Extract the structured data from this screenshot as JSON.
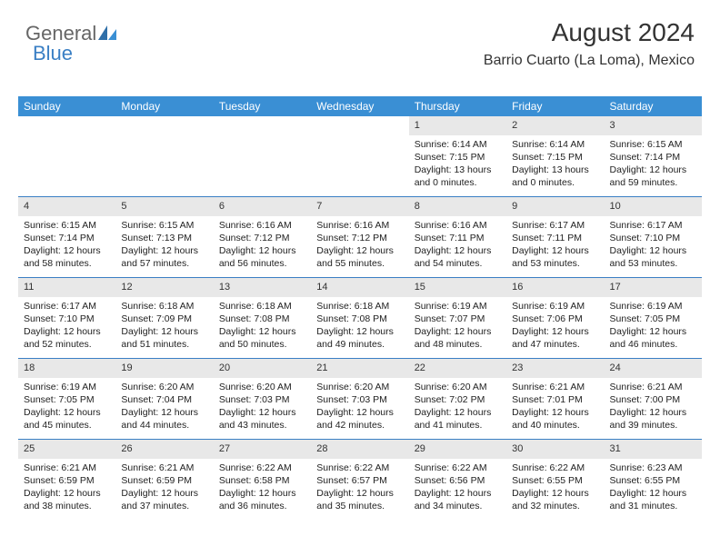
{
  "logo": {
    "text_general": "General",
    "text_blue": "Blue"
  },
  "header": {
    "month_title": "August 2024",
    "location": "Barrio Cuarto (La Loma), Mexico"
  },
  "colors": {
    "header_bg": "#3a8fd4",
    "header_text": "#ffffff",
    "daynum_bg": "#e8e8e8",
    "week_border": "#3a7fc4",
    "logo_blue": "#3a7fc4",
    "body_text": "#222222"
  },
  "day_labels": [
    "Sunday",
    "Monday",
    "Tuesday",
    "Wednesday",
    "Thursday",
    "Friday",
    "Saturday"
  ],
  "weeks": [
    [
      {
        "empty": true
      },
      {
        "empty": true
      },
      {
        "empty": true
      },
      {
        "empty": true
      },
      {
        "num": "1",
        "sunrise": "Sunrise: 6:14 AM",
        "sunset": "Sunset: 7:15 PM",
        "daylight": "Daylight: 13 hours and 0 minutes."
      },
      {
        "num": "2",
        "sunrise": "Sunrise: 6:14 AM",
        "sunset": "Sunset: 7:15 PM",
        "daylight": "Daylight: 13 hours and 0 minutes."
      },
      {
        "num": "3",
        "sunrise": "Sunrise: 6:15 AM",
        "sunset": "Sunset: 7:14 PM",
        "daylight": "Daylight: 12 hours and 59 minutes."
      }
    ],
    [
      {
        "num": "4",
        "sunrise": "Sunrise: 6:15 AM",
        "sunset": "Sunset: 7:14 PM",
        "daylight": "Daylight: 12 hours and 58 minutes."
      },
      {
        "num": "5",
        "sunrise": "Sunrise: 6:15 AM",
        "sunset": "Sunset: 7:13 PM",
        "daylight": "Daylight: 12 hours and 57 minutes."
      },
      {
        "num": "6",
        "sunrise": "Sunrise: 6:16 AM",
        "sunset": "Sunset: 7:12 PM",
        "daylight": "Daylight: 12 hours and 56 minutes."
      },
      {
        "num": "7",
        "sunrise": "Sunrise: 6:16 AM",
        "sunset": "Sunset: 7:12 PM",
        "daylight": "Daylight: 12 hours and 55 minutes."
      },
      {
        "num": "8",
        "sunrise": "Sunrise: 6:16 AM",
        "sunset": "Sunset: 7:11 PM",
        "daylight": "Daylight: 12 hours and 54 minutes."
      },
      {
        "num": "9",
        "sunrise": "Sunrise: 6:17 AM",
        "sunset": "Sunset: 7:11 PM",
        "daylight": "Daylight: 12 hours and 53 minutes."
      },
      {
        "num": "10",
        "sunrise": "Sunrise: 6:17 AM",
        "sunset": "Sunset: 7:10 PM",
        "daylight": "Daylight: 12 hours and 53 minutes."
      }
    ],
    [
      {
        "num": "11",
        "sunrise": "Sunrise: 6:17 AM",
        "sunset": "Sunset: 7:10 PM",
        "daylight": "Daylight: 12 hours and 52 minutes."
      },
      {
        "num": "12",
        "sunrise": "Sunrise: 6:18 AM",
        "sunset": "Sunset: 7:09 PM",
        "daylight": "Daylight: 12 hours and 51 minutes."
      },
      {
        "num": "13",
        "sunrise": "Sunrise: 6:18 AM",
        "sunset": "Sunset: 7:08 PM",
        "daylight": "Daylight: 12 hours and 50 minutes."
      },
      {
        "num": "14",
        "sunrise": "Sunrise: 6:18 AM",
        "sunset": "Sunset: 7:08 PM",
        "daylight": "Daylight: 12 hours and 49 minutes."
      },
      {
        "num": "15",
        "sunrise": "Sunrise: 6:19 AM",
        "sunset": "Sunset: 7:07 PM",
        "daylight": "Daylight: 12 hours and 48 minutes."
      },
      {
        "num": "16",
        "sunrise": "Sunrise: 6:19 AM",
        "sunset": "Sunset: 7:06 PM",
        "daylight": "Daylight: 12 hours and 47 minutes."
      },
      {
        "num": "17",
        "sunrise": "Sunrise: 6:19 AM",
        "sunset": "Sunset: 7:05 PM",
        "daylight": "Daylight: 12 hours and 46 minutes."
      }
    ],
    [
      {
        "num": "18",
        "sunrise": "Sunrise: 6:19 AM",
        "sunset": "Sunset: 7:05 PM",
        "daylight": "Daylight: 12 hours and 45 minutes."
      },
      {
        "num": "19",
        "sunrise": "Sunrise: 6:20 AM",
        "sunset": "Sunset: 7:04 PM",
        "daylight": "Daylight: 12 hours and 44 minutes."
      },
      {
        "num": "20",
        "sunrise": "Sunrise: 6:20 AM",
        "sunset": "Sunset: 7:03 PM",
        "daylight": "Daylight: 12 hours and 43 minutes."
      },
      {
        "num": "21",
        "sunrise": "Sunrise: 6:20 AM",
        "sunset": "Sunset: 7:03 PM",
        "daylight": "Daylight: 12 hours and 42 minutes."
      },
      {
        "num": "22",
        "sunrise": "Sunrise: 6:20 AM",
        "sunset": "Sunset: 7:02 PM",
        "daylight": "Daylight: 12 hours and 41 minutes."
      },
      {
        "num": "23",
        "sunrise": "Sunrise: 6:21 AM",
        "sunset": "Sunset: 7:01 PM",
        "daylight": "Daylight: 12 hours and 40 minutes."
      },
      {
        "num": "24",
        "sunrise": "Sunrise: 6:21 AM",
        "sunset": "Sunset: 7:00 PM",
        "daylight": "Daylight: 12 hours and 39 minutes."
      }
    ],
    [
      {
        "num": "25",
        "sunrise": "Sunrise: 6:21 AM",
        "sunset": "Sunset: 6:59 PM",
        "daylight": "Daylight: 12 hours and 38 minutes."
      },
      {
        "num": "26",
        "sunrise": "Sunrise: 6:21 AM",
        "sunset": "Sunset: 6:59 PM",
        "daylight": "Daylight: 12 hours and 37 minutes."
      },
      {
        "num": "27",
        "sunrise": "Sunrise: 6:22 AM",
        "sunset": "Sunset: 6:58 PM",
        "daylight": "Daylight: 12 hours and 36 minutes."
      },
      {
        "num": "28",
        "sunrise": "Sunrise: 6:22 AM",
        "sunset": "Sunset: 6:57 PM",
        "daylight": "Daylight: 12 hours and 35 minutes."
      },
      {
        "num": "29",
        "sunrise": "Sunrise: 6:22 AM",
        "sunset": "Sunset: 6:56 PM",
        "daylight": "Daylight: 12 hours and 34 minutes."
      },
      {
        "num": "30",
        "sunrise": "Sunrise: 6:22 AM",
        "sunset": "Sunset: 6:55 PM",
        "daylight": "Daylight: 12 hours and 32 minutes."
      },
      {
        "num": "31",
        "sunrise": "Sunrise: 6:23 AM",
        "sunset": "Sunset: 6:55 PM",
        "daylight": "Daylight: 12 hours and 31 minutes."
      }
    ]
  ]
}
